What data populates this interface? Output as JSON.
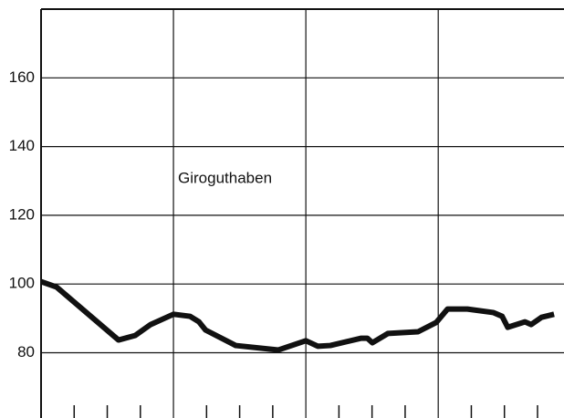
{
  "chart_data": {
    "type": "line",
    "annotation": "Giroguthaben",
    "x": [
      0,
      0.47,
      2.34,
      2.84,
      3.31,
      4,
      4.5,
      4.77,
      4.97,
      5.88,
      7.17,
      8,
      8.36,
      8.74,
      9.66,
      9.86,
      10.01,
      10.48,
      11.39,
      11.94,
      12.28,
      12.88,
      13.66,
      13.93,
      14.1,
      14.62,
      14.81,
      15.12,
      15.5
    ],
    "series": [
      {
        "color": "#111111",
        "values": [
          100.7,
          99.1,
          83.7,
          85,
          88.2,
          91.2,
          90.6,
          89,
          86.6,
          82.1,
          80.8,
          83.5,
          81.9,
          82.1,
          84.2,
          84.2,
          82.9,
          85.6,
          86.1,
          88.8,
          92.7,
          92.7,
          91.7,
          90.6,
          87.4,
          89,
          88.2,
          90.3,
          91.2
        ]
      }
    ],
    "xlim": [
      0,
      15.8
    ],
    "xgrid": [
      0,
      4,
      8,
      12
    ],
    "xticks": [
      1,
      2,
      3,
      5,
      6,
      7,
      9,
      10,
      11,
      13,
      14,
      15
    ],
    "ylim": [
      61,
      180
    ],
    "yticks": [
      80,
      100,
      120,
      140,
      160
    ],
    "grid": true
  }
}
